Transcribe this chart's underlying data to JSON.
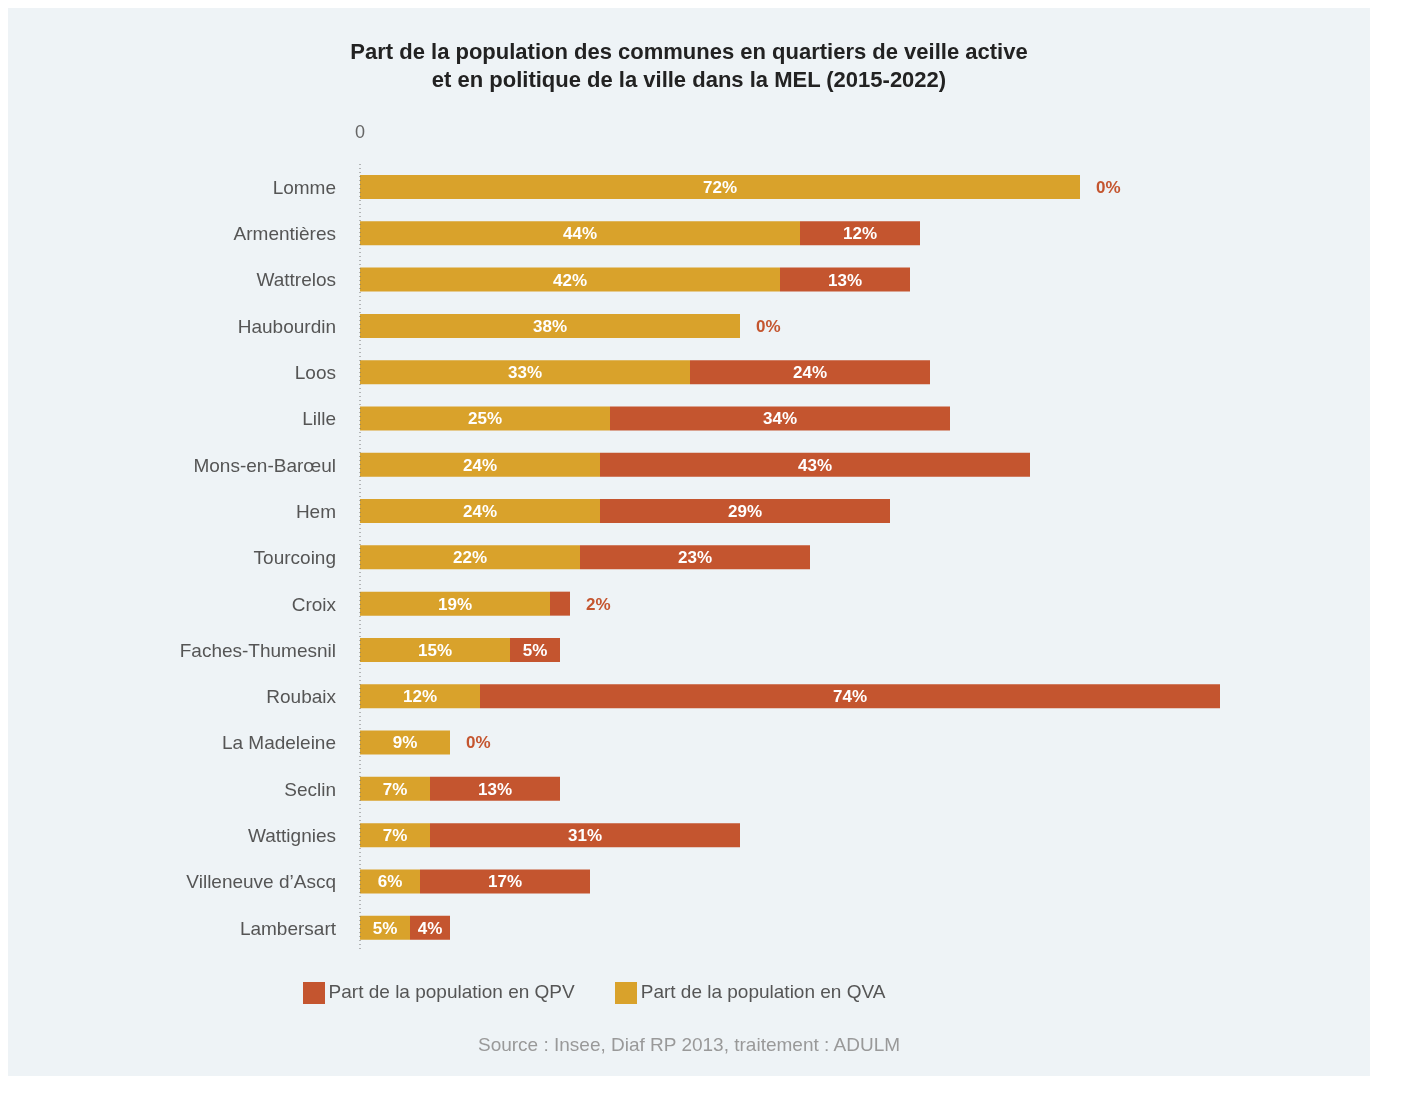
{
  "chart_data": {
    "type": "bar",
    "orientation": "horizontal",
    "stacked": true,
    "title": "Part de la population des communes en quartiers de veille active\net en politique de la ville dans la MEL (2015-2022)",
    "categories": [
      "Lomme",
      "Armentières",
      "Wattrelos",
      "Haubourdin",
      "Loos",
      "Lille",
      "Mons-en-Barœul",
      "Hem",
      "Tourcoing",
      "Croix",
      "Faches-Thumesnil",
      "Roubaix",
      "La Madeleine",
      "Seclin",
      "Wattignies",
      "Villeneuve d’Ascq",
      "Lambersart"
    ],
    "series": [
      {
        "name": "Part de la population en QVA",
        "color": "#d9a22b",
        "values": [
          72,
          44,
          42,
          38,
          33,
          25,
          24,
          24,
          22,
          19,
          15,
          12,
          9,
          7,
          7,
          6,
          5
        ],
        "value_labels": [
          "72%",
          "44%",
          "42%",
          "38%",
          "33%",
          "25%",
          "24%",
          "24%",
          "22%",
          "19%",
          "15%",
          "12%",
          "9%",
          "7%",
          "7%",
          "6%",
          "5%"
        ]
      },
      {
        "name": "Part de la population en QPV",
        "color": "#c4552f",
        "values": [
          0,
          12,
          13,
          0,
          24,
          34,
          43,
          29,
          23,
          2,
          5,
          74,
          0,
          13,
          31,
          17,
          4
        ],
        "value_labels": [
          "0%",
          "12%",
          "13%",
          "0%",
          "24%",
          "34%",
          "43%",
          "29%",
          "23%",
          "2%",
          "5%",
          "74%",
          "0%",
          "13%",
          "31%",
          "17%",
          "4%"
        ]
      }
    ],
    "grid": false,
    "legend": "bottom",
    "annotations": [
      "0",
      "Source : Insee, Diaf RP 2013, traitement : ADULM"
    ]
  }
}
